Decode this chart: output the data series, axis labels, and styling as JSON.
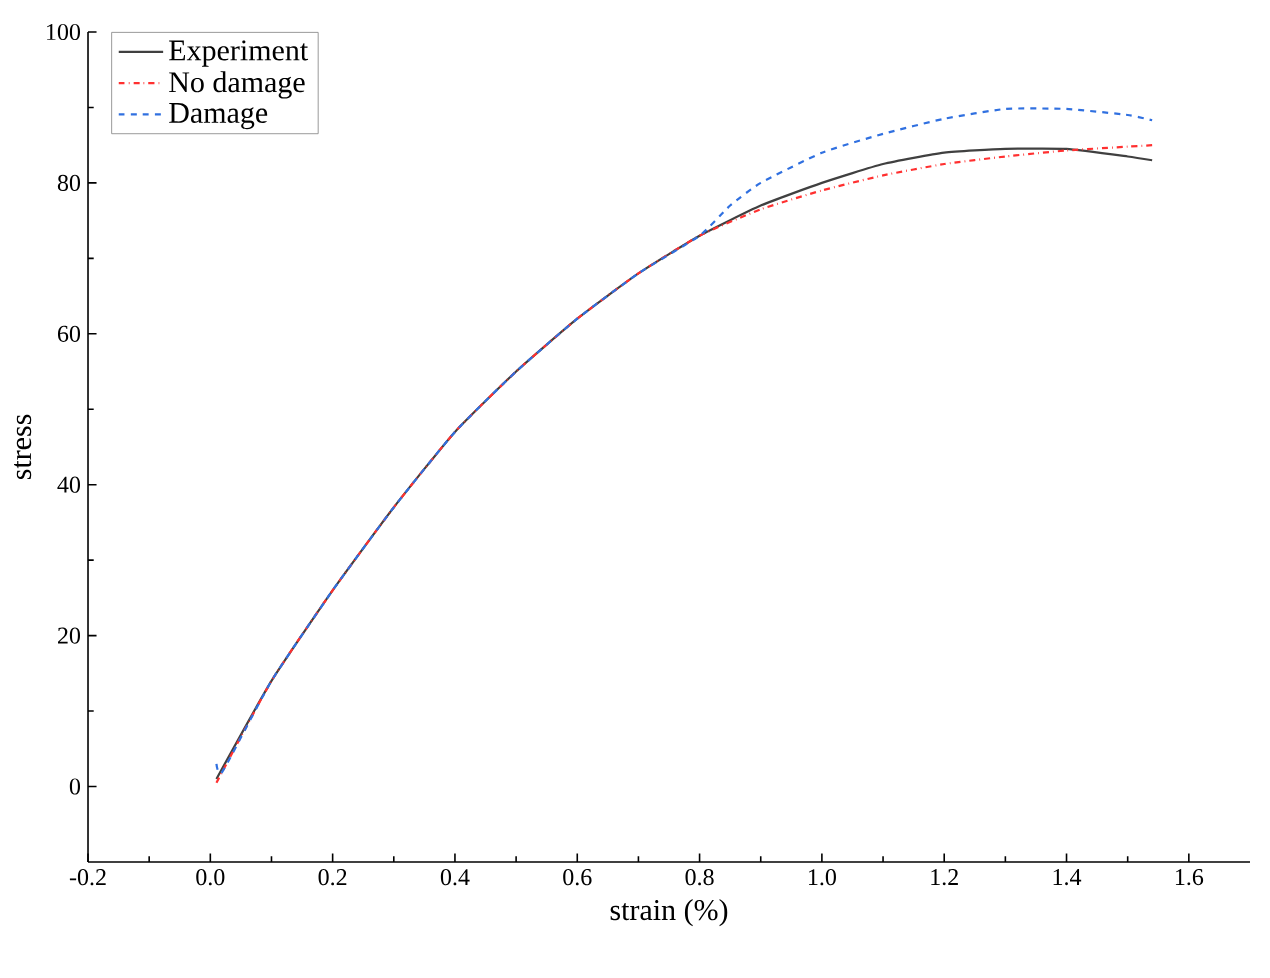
{
  "chart_data": {
    "type": "line",
    "xlabel": "strain (%)",
    "ylabel": "stress",
    "xlim": [
      -0.2,
      1.7
    ],
    "ylim": [
      -10,
      100
    ],
    "xticks": [
      {
        "value": -0.2,
        "label": "-0.2"
      },
      {
        "value": 0,
        "label": "0.0"
      },
      {
        "value": 0.2,
        "label": "0.2"
      },
      {
        "value": 0.4,
        "label": "0.4"
      },
      {
        "value": 0.6,
        "label": "0.6"
      },
      {
        "value": 0.8,
        "label": "0.8"
      },
      {
        "value": 1.0,
        "label": "1.0"
      },
      {
        "value": 1.2,
        "label": "1.2"
      },
      {
        "value": 1.4,
        "label": "1.4"
      },
      {
        "value": 1.6,
        "label": "1.6"
      }
    ],
    "yticks": [
      0,
      20,
      40,
      60,
      80,
      100
    ],
    "legend": "top left",
    "grid": false,
    "series": [
      {
        "name": "Experiment",
        "color": "#404040",
        "line_style": "solid",
        "x": [
          0.01,
          0.1,
          0.2,
          0.3,
          0.4,
          0.5,
          0.6,
          0.7,
          0.8,
          0.9,
          1.0,
          1.1,
          1.2,
          1.3,
          1.4,
          1.5,
          1.54
        ],
        "values": [
          1,
          14,
          26,
          37,
          47,
          55,
          62,
          68,
          73,
          77,
          80,
          82.5,
          84,
          84.5,
          84.5,
          83.5,
          83
        ]
      },
      {
        "name": "No damage",
        "color": "#ff3030",
        "line_style": "dashdotted",
        "x": [
          0.01,
          0.1,
          0.2,
          0.3,
          0.4,
          0.5,
          0.6,
          0.7,
          0.8,
          0.9,
          1.0,
          1.1,
          1.2,
          1.3,
          1.4,
          1.5,
          1.54
        ],
        "values": [
          0.5,
          14,
          26,
          37,
          47,
          55,
          62,
          68,
          73,
          76.5,
          79,
          81,
          82.5,
          83.5,
          84.3,
          84.8,
          85
        ]
      },
      {
        "name": "Damage",
        "color": "#3070e0",
        "line_style": "dashed",
        "x": [
          0.01,
          0.02,
          0.1,
          0.2,
          0.3,
          0.4,
          0.5,
          0.6,
          0.7,
          0.8,
          0.85,
          0.9,
          1.0,
          1.1,
          1.2,
          1.3,
          1.4,
          1.5,
          1.54
        ],
        "values": [
          3,
          2,
          14,
          26,
          37,
          47,
          55,
          62,
          68,
          73,
          77,
          80,
          84,
          86.5,
          88.5,
          89.8,
          89.8,
          89,
          88.3
        ]
      }
    ]
  }
}
